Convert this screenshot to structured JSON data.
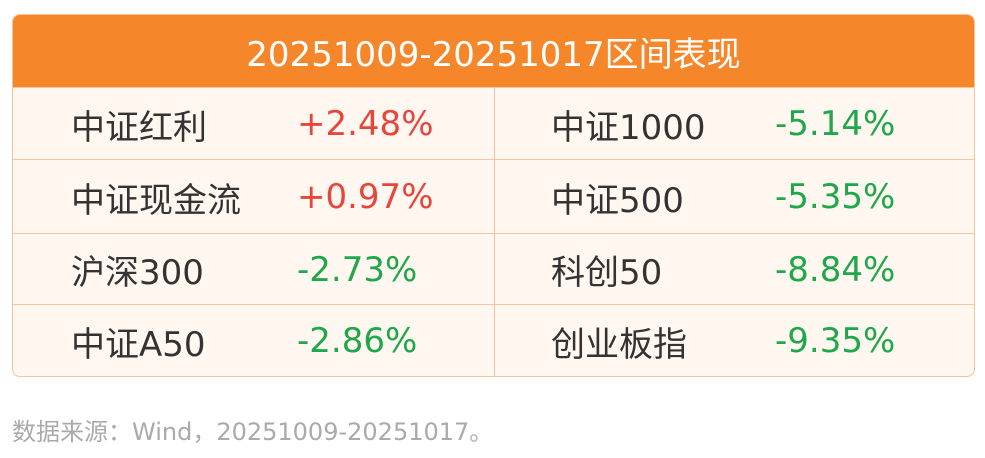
{
  "header": {
    "title": "20251009-20251017区间表现"
  },
  "table": {
    "rows": [
      [
        "中证红利",
        "+2.48%",
        "中证1000",
        "-5.14%"
      ],
      [
        "中证现金流",
        "+0.97%",
        "中证500",
        "-5.35%"
      ],
      [
        "沪深300",
        "-2.73%",
        "科创50",
        "-8.84%"
      ],
      [
        "中证A50",
        "-2.86%",
        "创业板指",
        "-9.35%"
      ]
    ]
  },
  "footer": {
    "source": "数据来源：Wind，20251009-20251017。"
  }
}
